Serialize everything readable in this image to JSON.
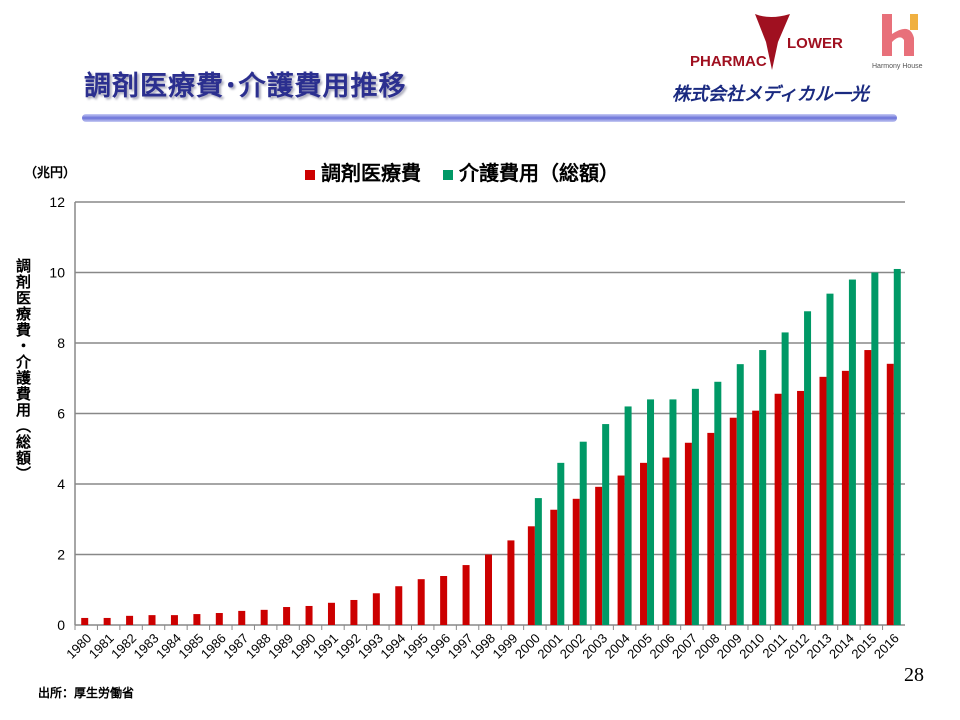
{
  "slide": {
    "title": "調剤医療費･介護費用推移",
    "company": "株式会社メディカル一光",
    "logos": [
      "PHARMACY FLOWER",
      "Harmony House"
    ],
    "source": "出所：厚生労働省",
    "page_number": "28"
  },
  "colors": {
    "red": "#cc0000",
    "green": "#009966",
    "title": "#2b2f8f"
  },
  "chart_data": {
    "type": "bar",
    "unit_label": "（兆円）",
    "ylabel": "調剤医療費・介護費用（総額）",
    "ylim": [
      0,
      12
    ],
    "yticks": [
      0,
      2,
      4,
      6,
      8,
      10,
      12
    ],
    "grid": true,
    "legend_position": "top",
    "categories": [
      "1980",
      "1981",
      "1982",
      "1983",
      "1984",
      "1985",
      "1986",
      "1987",
      "1988",
      "1989",
      "1990",
      "1991",
      "1992",
      "1993",
      "1994",
      "1995",
      "1996",
      "1997",
      "1998",
      "1999",
      "2000",
      "2001",
      "2002",
      "2003",
      "2004",
      "2005",
      "2006",
      "2007",
      "2008",
      "2009",
      "2010",
      "2011",
      "2012",
      "2013",
      "2014",
      "2015",
      "2016"
    ],
    "series": [
      {
        "name": "調剤医療費",
        "color": "#cc0000",
        "values": [
          0.2,
          0.2,
          0.26,
          0.28,
          0.28,
          0.31,
          0.34,
          0.4,
          0.43,
          0.51,
          0.54,
          0.63,
          0.71,
          0.9,
          1.1,
          1.3,
          1.39,
          1.7,
          2.0,
          2.4,
          2.8,
          3.27,
          3.58,
          3.92,
          4.24,
          4.6,
          4.75,
          5.17,
          5.45,
          5.88,
          6.08,
          6.56,
          6.64,
          7.04,
          7.21,
          7.8,
          7.41
        ]
      },
      {
        "name": "介護費用（総額）",
        "color": "#009966",
        "values": [
          null,
          null,
          null,
          null,
          null,
          null,
          null,
          null,
          null,
          null,
          null,
          null,
          null,
          null,
          null,
          null,
          null,
          null,
          null,
          null,
          3.6,
          4.6,
          5.2,
          5.7,
          6.2,
          6.4,
          6.4,
          6.7,
          6.9,
          7.4,
          7.8,
          8.3,
          8.9,
          9.4,
          9.8,
          10.0,
          10.1
        ]
      }
    ]
  }
}
